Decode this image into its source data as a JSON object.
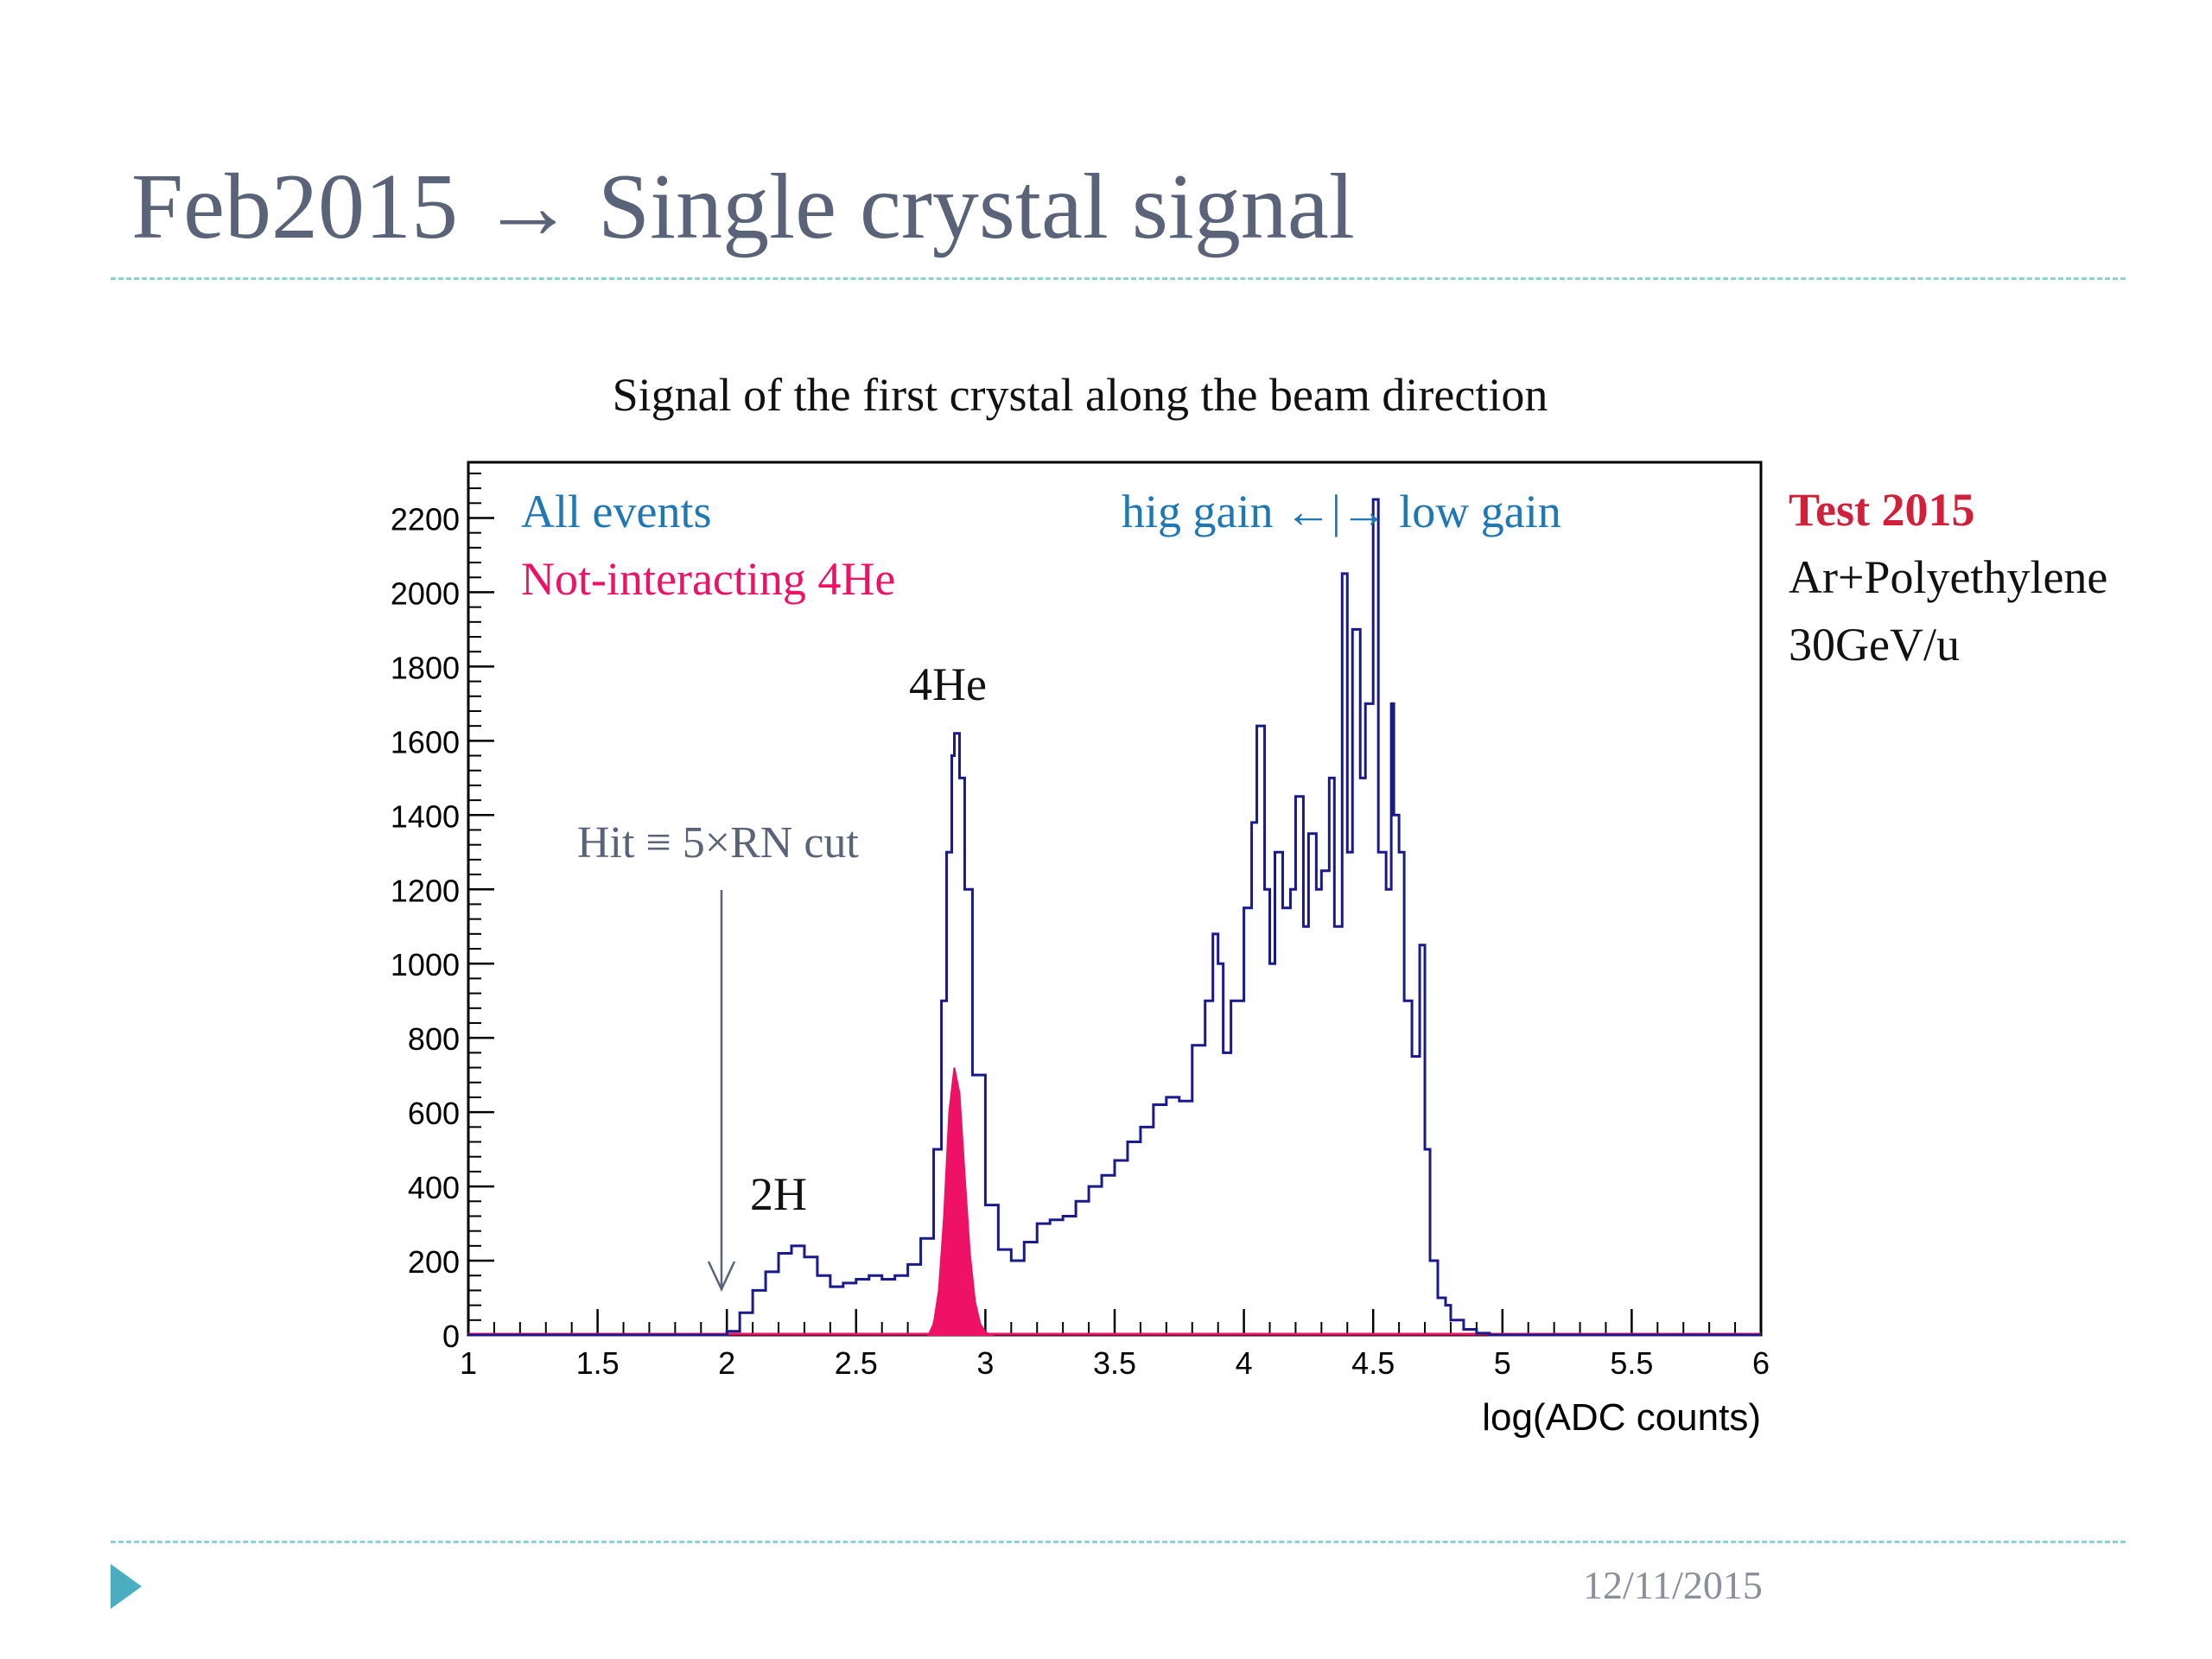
{
  "slide": {
    "title": "Feb2015 → Single crystal signal",
    "date": "12/11/2015"
  },
  "side_text": {
    "test_label": "Test 2015",
    "line1": "Ar+Polyethylene",
    "line2": "30GeV/u"
  },
  "colors": {
    "title": "#5a6378",
    "all_events": "#1a1a8c",
    "all_events_label": "#1f78b4",
    "not_interacting": "#ee1166",
    "test_label": "#d0203a",
    "annotation_gray": "#5a6378",
    "rule": "#8fd0d8",
    "nav_icon": "#4aaec0"
  },
  "chart_data": {
    "type": "histogram",
    "title": "Signal of the first crystal along the beam direction",
    "xlabel": "log(ADC counts)",
    "ylabel": "",
    "xlim": [
      1,
      6
    ],
    "ylim": [
      0,
      2350
    ],
    "x_ticks": [
      "1",
      "1.5",
      "2",
      "2.5",
      "3",
      "3.5",
      "4",
      "4.5",
      "5",
      "5.5",
      "6"
    ],
    "y_ticks": [
      "0",
      "200",
      "400",
      "600",
      "800",
      "1000",
      "1200",
      "1400",
      "1600",
      "1800",
      "2000",
      "2200"
    ],
    "grid": false,
    "legend": [
      {
        "label": "All events",
        "series": "all"
      },
      {
        "label": "Not-interacting 4He",
        "series": "he4"
      }
    ],
    "annotations": {
      "gain": "hig gain ←|→ low gain",
      "cut": "Hit ≡ 5×RN cut",
      "peak_4he": "4He",
      "peak_2h": "2H"
    },
    "series": [
      {
        "name": "All events",
        "style": "step-line",
        "x": [
          1.0,
          1.95,
          2.0,
          2.05,
          2.1,
          2.15,
          2.2,
          2.25,
          2.3,
          2.35,
          2.4,
          2.45,
          2.5,
          2.55,
          2.6,
          2.65,
          2.7,
          2.75,
          2.8,
          2.83,
          2.85,
          2.87,
          2.88,
          2.9,
          2.92,
          2.95,
          3.0,
          3.05,
          3.1,
          3.15,
          3.2,
          3.25,
          3.3,
          3.35,
          3.4,
          3.45,
          3.5,
          3.55,
          3.6,
          3.65,
          3.7,
          3.75,
          3.8,
          3.85,
          3.88,
          3.9,
          3.92,
          3.95,
          4.0,
          4.03,
          4.05,
          4.08,
          4.1,
          4.12,
          4.15,
          4.18,
          4.2,
          4.23,
          4.25,
          4.28,
          4.3,
          4.33,
          4.35,
          4.38,
          4.4,
          4.42,
          4.45,
          4.47,
          4.5,
          4.52,
          4.55,
          4.57,
          4.58,
          4.6,
          4.62,
          4.65,
          4.68,
          4.7,
          4.72,
          4.75,
          4.78,
          4.8,
          4.85,
          4.9,
          4.95,
          5.0,
          5.05,
          5.1,
          5.15,
          6.0
        ],
        "values": [
          0,
          0,
          10,
          60,
          120,
          170,
          220,
          240,
          210,
          160,
          130,
          140,
          150,
          160,
          150,
          160,
          190,
          260,
          500,
          900,
          1300,
          1560,
          1620,
          1500,
          1200,
          700,
          350,
          230,
          200,
          250,
          300,
          310,
          320,
          360,
          400,
          430,
          470,
          520,
          560,
          620,
          640,
          630,
          780,
          900,
          1080,
          1000,
          760,
          900,
          1150,
          1380,
          1640,
          1200,
          1000,
          1300,
          1150,
          1200,
          1450,
          1100,
          1350,
          1200,
          1250,
          1500,
          1100,
          2050,
          1300,
          1900,
          1500,
          1700,
          2250,
          1300,
          1200,
          1700,
          1400,
          1300,
          900,
          750,
          1050,
          500,
          200,
          100,
          80,
          40,
          15,
          5,
          0,
          0,
          0,
          0,
          0,
          0
        ]
      },
      {
        "name": "Not-interacting 4He",
        "style": "filled",
        "x": [
          2.78,
          2.8,
          2.82,
          2.84,
          2.86,
          2.88,
          2.9,
          2.92,
          2.94,
          2.96,
          2.98,
          3.0,
          3.02
        ],
        "values": [
          0,
          30,
          120,
          320,
          600,
          720,
          650,
          430,
          220,
          90,
          30,
          8,
          0
        ]
      }
    ]
  }
}
